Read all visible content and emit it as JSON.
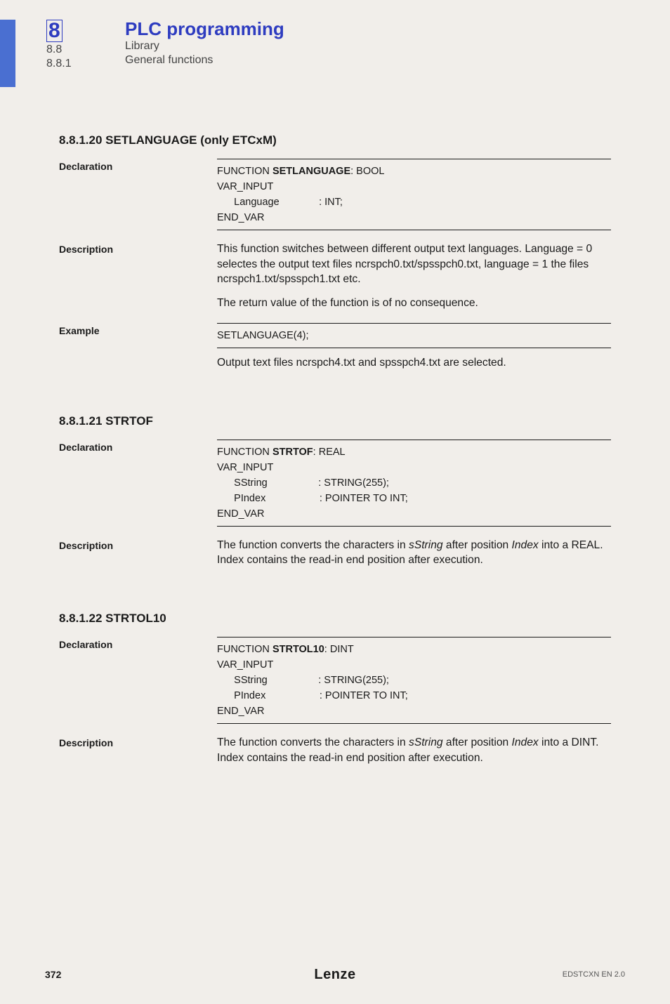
{
  "header": {
    "chap_num_html": "8",
    "sub1": "8.8",
    "sub2": "8.8.1",
    "title": "PLC programming",
    "lib": "Library",
    "gen": "General functions"
  },
  "s1": {
    "heading": "8.8.1.20    SETLANGUAGE (only ETCxM)",
    "decl_label": "Declaration",
    "decl_code_html": "FUNCTION <b class='kw'>SETLANGUAGE</b>: BOOL\nVAR_INPUT\n      Language              : INT;\nEND_VAR",
    "desc_label": "Description",
    "desc_p1": "This function switches between different output text languages. Language = 0 selectes the output text files ncrspch0.txt/spsspch0.txt, language = 1 the files ncrspch1.txt/spsspch1.txt etc.",
    "desc_p2": "The return value of the function is of no consequence.",
    "ex_label": "Example",
    "ex_code": "SETLANGUAGE(4);",
    "ex_after": "Output text files ncrspch4.txt and spsspch4.txt are selected."
  },
  "s2": {
    "heading": "8.8.1.21    STRTOF",
    "decl_label": "Declaration",
    "decl_code_html": "FUNCTION <b class='kw'>STRTOF</b>: REAL\nVAR_INPUT\n      SString                  : STRING(255);\n      PIndex                   : POINTER TO INT;\nEND_VAR",
    "desc_label": "Description",
    "desc_html": "The function converts the characters in <i class='term'>sString</i> after position <i class='term'>Index</i> into a REAL. Index contains the read-in end position after execution."
  },
  "s3": {
    "heading": "8.8.1.22    STRTOL10",
    "decl_label": "Declaration",
    "decl_code_html": "FUNCTION <b class='kw'>STRTOL10</b>: DINT\nVAR_INPUT\n      SString                  : STRING(255);\n      PIndex                   : POINTER TO INT;\nEND_VAR",
    "desc_label": "Description",
    "desc_html": "The function converts the characters in <i class='term'>sString</i> after position <i class='term'>Index</i> into a DINT. Index contains the read-in end position after execution."
  },
  "footer": {
    "page": "372",
    "brand": "Lenze",
    "docref": "EDSTCXN EN 2.0"
  }
}
